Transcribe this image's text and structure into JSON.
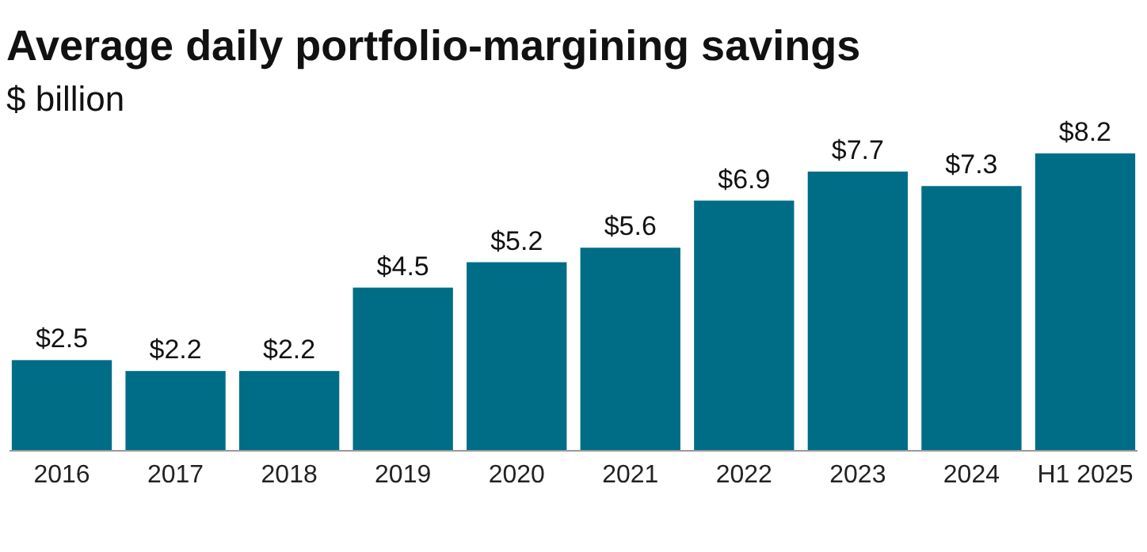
{
  "chart_data": {
    "type": "bar",
    "title": "Average daily portfolio-margining savings",
    "subtitle": "$ billion",
    "categories": [
      "2016",
      "2017",
      "2018",
      "2019",
      "2020",
      "2021",
      "2022",
      "2023",
      "2024",
      "H1 2025"
    ],
    "values": [
      2.5,
      2.2,
      2.2,
      4.5,
      5.2,
      5.6,
      6.9,
      7.7,
      7.3,
      8.2
    ],
    "value_labels": [
      "$2.5",
      "$2.2",
      "$2.2",
      "$4.5",
      "$5.2",
      "$5.6",
      "$6.9",
      "$7.7",
      "$7.3",
      "$8.2"
    ],
    "color": "#006d86"
  }
}
